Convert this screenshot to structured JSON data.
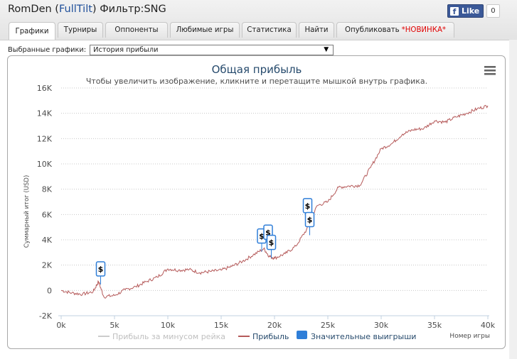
{
  "header": {
    "title_prefix": "RomDen (",
    "title_link": "FullTilt",
    "title_suffix": ") Фильтр:SNG",
    "fb_like": "Like",
    "fb_count": "0"
  },
  "tabs": [
    {
      "label": "Графики",
      "active": true
    },
    {
      "label": "Турниры"
    },
    {
      "label": "Оппоненты"
    },
    {
      "label": "Любимые игры"
    },
    {
      "label": "Статистика"
    },
    {
      "label": "Найти"
    },
    {
      "label": "Опубликовать",
      "highlight": "*НОВИНКА*"
    }
  ],
  "selector": {
    "label": "Выбранные графики:",
    "value": "История прибыли"
  },
  "colors": {
    "profit_line": "#b55a5a",
    "rake_line": "#cccccc",
    "marker_blue": "#2f7ed8"
  },
  "chart_data": {
    "type": "line",
    "title": "Общая прибыль",
    "subtitle": "Чтобы увеличить изображение, кликните и перетащите мышкой внутрь графика.",
    "ylabel": "Суммарный итог (USD)",
    "xlabel": "Номер игры",
    "xlim": [
      0,
      40000
    ],
    "ylim": [
      -2000,
      16000
    ],
    "x_ticks": [
      0,
      5000,
      10000,
      15000,
      20000,
      25000,
      30000,
      35000,
      40000
    ],
    "x_tick_labels": [
      "0k",
      "5k",
      "10k",
      "15k",
      "20k",
      "25k",
      "30k",
      "35k",
      "40k"
    ],
    "y_ticks": [
      -2000,
      0,
      2000,
      4000,
      6000,
      8000,
      10000,
      12000,
      14000,
      16000
    ],
    "y_tick_labels": [
      "-2K",
      "0",
      "2K",
      "4K",
      "6K",
      "8K",
      "10K",
      "12K",
      "14K",
      "16K"
    ],
    "grid": "horizontal-dotted",
    "legend": {
      "position": "bottom",
      "items": [
        "Прибыль за минусом рейка",
        "Прибыль",
        "Значительные выигрыши"
      ]
    },
    "series": [
      {
        "name": "Прибыль",
        "x": [
          0,
          1000,
          2000,
          3000,
          3500,
          4000,
          5000,
          6000,
          7000,
          8000,
          9000,
          10000,
          11000,
          12000,
          13000,
          14000,
          15000,
          16000,
          17000,
          18000,
          19000,
          19500,
          20000,
          21000,
          22000,
          23000,
          24000,
          25000,
          26000,
          27000,
          28000,
          29000,
          30000,
          31000,
          32000,
          33000,
          34000,
          35000,
          36000,
          37000,
          38000,
          39000,
          40000
        ],
        "values": [
          0,
          -200,
          -300,
          -100,
          700,
          -500,
          -400,
          50,
          300,
          700,
          1050,
          1700,
          1600,
          1650,
          1400,
          1500,
          1600,
          1900,
          2300,
          2800,
          3300,
          2700,
          2550,
          2900,
          3500,
          4800,
          6700,
          7000,
          8150,
          8250,
          8300,
          9700,
          11200,
          11600,
          12350,
          12700,
          12800,
          13400,
          13300,
          13700,
          14000,
          14350,
          14600
        ]
      },
      {
        "name": "Прибыль за минусом рейка",
        "x": [],
        "values": []
      }
    ],
    "significant_wins": [
      {
        "x": 3700,
        "y": 1700
      },
      {
        "x": 18800,
        "y": 4300
      },
      {
        "x": 19400,
        "y": 4600
      },
      {
        "x": 19700,
        "y": 3800
      },
      {
        "x": 23100,
        "y": 6700
      },
      {
        "x": 23300,
        "y": 5600
      }
    ]
  }
}
